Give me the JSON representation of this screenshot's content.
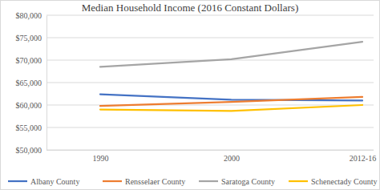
{
  "chart_data": {
    "type": "line",
    "title": "Median Household Income (2016 Constant Dollars)",
    "categories": [
      "1990",
      "2000",
      "2012-16"
    ],
    "series": [
      {
        "name": "Albany County",
        "color": "#4472c4",
        "values": [
          62400,
          61200,
          61000
        ]
      },
      {
        "name": "Rensselaer County",
        "color": "#ed7d31",
        "values": [
          59800,
          60700,
          61800
        ]
      },
      {
        "name": "Saratoga County",
        "color": "#a5a5a5",
        "values": [
          68500,
          70200,
          74100
        ]
      },
      {
        "name": "Schenectady County",
        "color": "#ffc000",
        "values": [
          59000,
          58700,
          60000
        ]
      }
    ],
    "ylim": [
      50000,
      80000
    ],
    "yticks": [
      {
        "value": 50000,
        "label": "$50,000"
      },
      {
        "value": 55000,
        "label": "$55,000"
      },
      {
        "value": 60000,
        "label": "$60,000"
      },
      {
        "value": 65000,
        "label": "$65,000"
      },
      {
        "value": 70000,
        "label": "$70,000"
      },
      {
        "value": 75000,
        "label": "$75,000"
      },
      {
        "value": 80000,
        "label": "$80,000"
      }
    ],
    "grid": true,
    "legend": "bottom"
  }
}
